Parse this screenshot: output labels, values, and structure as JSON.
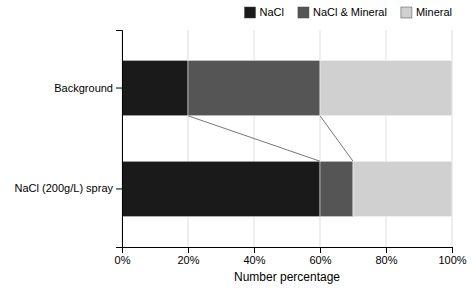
{
  "chart_data": {
    "type": "bar",
    "orientation": "horizontal",
    "stacked": true,
    "categories": [
      "Background",
      "NaCl (200g/L) spray"
    ],
    "series": [
      {
        "name": "NaCl",
        "color": "#1a1a1a",
        "values": [
          20,
          60
        ]
      },
      {
        "name": "NaCl & Mineral",
        "color": "#555555",
        "values": [
          40,
          10
        ]
      },
      {
        "name": "Mineral",
        "color": "#d0d0d0",
        "values": [
          40,
          30
        ]
      }
    ],
    "xlabel": "Number percentage",
    "xlim": [
      0,
      100
    ],
    "xticks": [
      {
        "value": 0,
        "label": "0%"
      },
      {
        "value": 20,
        "label": "20%"
      },
      {
        "value": 40,
        "label": "40%"
      },
      {
        "value": 60,
        "label": "60%"
      },
      {
        "value": 80,
        "label": "80%"
      },
      {
        "value": 100,
        "label": "100%"
      }
    ],
    "grid": true,
    "legend": "upper right"
  }
}
